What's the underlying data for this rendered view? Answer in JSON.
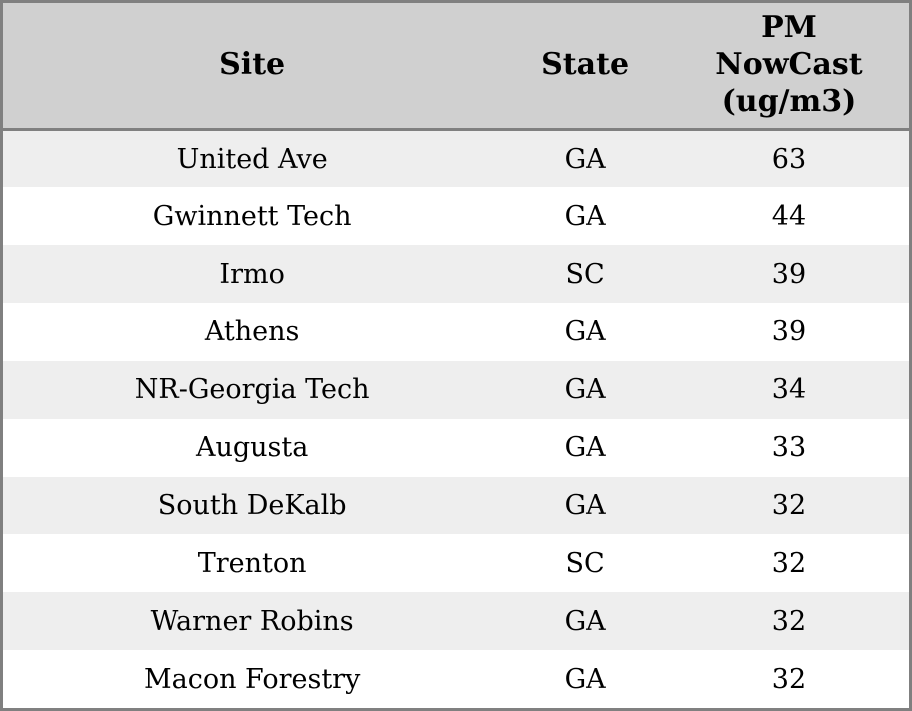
{
  "chart_data": {
    "type": "table",
    "columns": [
      "Site",
      "State",
      "PM NowCast (ug/m3)"
    ],
    "rows": [
      {
        "site": "United Ave",
        "state": "GA",
        "pm_nowcast": 63
      },
      {
        "site": "Gwinnett Tech",
        "state": "GA",
        "pm_nowcast": 44
      },
      {
        "site": "Irmo",
        "state": "SC",
        "pm_nowcast": 39
      },
      {
        "site": "Athens",
        "state": "GA",
        "pm_nowcast": 39
      },
      {
        "site": "NR-Georgia Tech",
        "state": "GA",
        "pm_nowcast": 34
      },
      {
        "site": "Augusta",
        "state": "GA",
        "pm_nowcast": 33
      },
      {
        "site": "South DeKalb",
        "state": "GA",
        "pm_nowcast": 32
      },
      {
        "site": "Trenton",
        "state": "SC",
        "pm_nowcast": 32
      },
      {
        "site": "Warner Robins",
        "state": "GA",
        "pm_nowcast": 32
      },
      {
        "site": "Macon Forestry",
        "state": "GA",
        "pm_nowcast": 32
      }
    ]
  },
  "header": {
    "site": "Site",
    "state": "State",
    "pm": "PM\nNowCast\n(ug/m3)"
  },
  "colors": {
    "header_bg": "#d0d0d0",
    "row_alt_bg": "#eeeeee",
    "row_bg": "#ffffff",
    "border": "#808080",
    "text": "#000000"
  }
}
